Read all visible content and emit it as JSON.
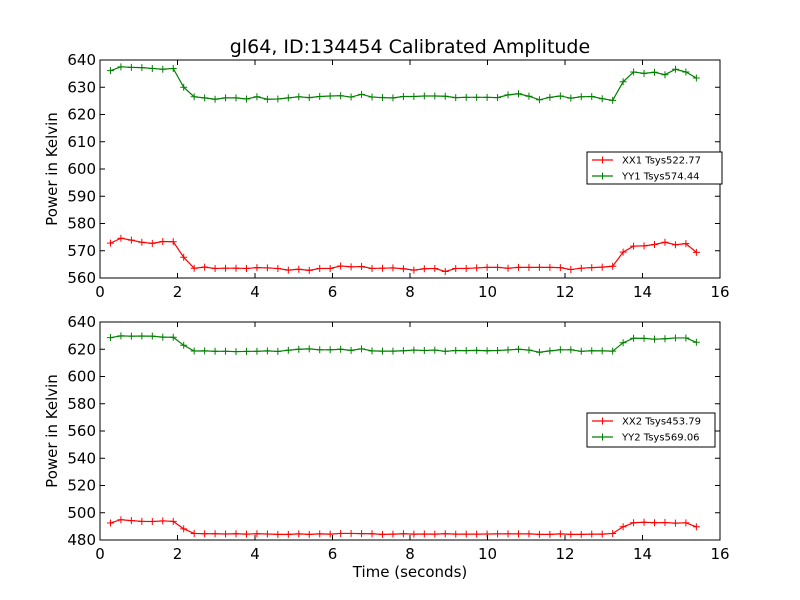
{
  "title": "gl64, ID:134454 Calibrated Amplitude",
  "chart_data": [
    {
      "type": "line",
      "title": "gl64, ID:134454 Calibrated Amplitude",
      "xlabel": "",
      "ylabel": "Power in Kelvin",
      "xlim": [
        0,
        16
      ],
      "ylim": [
        560,
        640
      ],
      "xticks": [
        0,
        2,
        4,
        6,
        8,
        10,
        12,
        14,
        16
      ],
      "yticks": [
        560,
        570,
        580,
        590,
        600,
        610,
        620,
        630,
        640
      ],
      "grid": false,
      "legend_position": "center-right",
      "x": [
        0.27,
        0.54,
        0.81,
        1.08,
        1.35,
        1.62,
        1.89,
        2.16,
        2.43,
        2.7,
        2.97,
        3.24,
        3.51,
        3.78,
        4.05,
        4.32,
        4.59,
        4.86,
        5.13,
        5.4,
        5.67,
        5.94,
        6.21,
        6.48,
        6.75,
        7.02,
        7.29,
        7.56,
        7.83,
        8.1,
        8.37,
        8.64,
        8.91,
        9.18,
        9.45,
        9.72,
        9.99,
        10.26,
        10.53,
        10.8,
        11.07,
        11.34,
        11.61,
        11.88,
        12.15,
        12.42,
        12.69,
        12.96,
        13.23,
        13.5,
        13.77,
        14.04,
        14.31,
        14.58,
        14.85,
        15.12,
        15.39
      ],
      "series": [
        {
          "name": "XX1 Tsys522.77",
          "color": "#ff0000",
          "values": [
            572.8,
            574.6,
            573.9,
            573.1,
            572.7,
            573.4,
            573.3,
            567.6,
            563.6,
            564.0,
            563.5,
            563.6,
            563.6,
            563.5,
            563.8,
            563.7,
            563.5,
            562.9,
            563.2,
            562.8,
            563.5,
            563.5,
            564.4,
            564.1,
            564.2,
            563.5,
            563.6,
            563.7,
            563.4,
            562.9,
            563.4,
            563.5,
            562.4,
            563.5,
            563.5,
            563.7,
            563.9,
            563.9,
            563.6,
            563.9,
            563.9,
            563.9,
            563.9,
            563.8,
            563.1,
            563.6,
            563.8,
            564.0,
            564.3,
            569.5,
            571.7,
            571.8,
            572.3,
            573.1,
            572.2,
            572.6,
            569.4
          ]
        },
        {
          "name": "YY1 Tsys574.44",
          "color": "#008000",
          "values": [
            636.1,
            637.5,
            637.3,
            637.2,
            636.9,
            636.6,
            636.9,
            630.0,
            626.5,
            626.1,
            625.6,
            626.1,
            626.1,
            625.7,
            626.5,
            625.6,
            625.7,
            626.1,
            626.5,
            626.2,
            626.6,
            626.8,
            626.9,
            626.4,
            627.4,
            626.4,
            626.2,
            626.1,
            626.6,
            626.6,
            626.8,
            626.8,
            626.7,
            626.2,
            626.3,
            626.3,
            626.3,
            626.2,
            627.2,
            627.6,
            626.7,
            625.4,
            626.3,
            626.8,
            626.0,
            626.5,
            626.6,
            625.8,
            625.2,
            632.0,
            635.6,
            635.1,
            635.5,
            634.6,
            636.6,
            635.6,
            633.4
          ]
        }
      ]
    },
    {
      "type": "line",
      "title": "",
      "xlabel": "Time (seconds)",
      "ylabel": "Power in Kelvin",
      "xlim": [
        0,
        16
      ],
      "ylim": [
        480,
        640
      ],
      "xticks": [
        0,
        2,
        4,
        6,
        8,
        10,
        12,
        14,
        16
      ],
      "yticks": [
        480,
        500,
        520,
        540,
        560,
        580,
        600,
        620,
        640
      ],
      "grid": false,
      "legend_position": "center-right",
      "x": [
        0.27,
        0.54,
        0.81,
        1.08,
        1.35,
        1.62,
        1.89,
        2.16,
        2.43,
        2.7,
        2.97,
        3.24,
        3.51,
        3.78,
        4.05,
        4.32,
        4.59,
        4.86,
        5.13,
        5.4,
        5.67,
        5.94,
        6.21,
        6.48,
        6.75,
        7.02,
        7.29,
        7.56,
        7.83,
        8.1,
        8.37,
        8.64,
        8.91,
        9.18,
        9.45,
        9.72,
        9.99,
        10.26,
        10.53,
        10.8,
        11.07,
        11.34,
        11.61,
        11.88,
        12.15,
        12.42,
        12.69,
        12.96,
        13.23,
        13.5,
        13.77,
        14.04,
        14.31,
        14.58,
        14.85,
        15.12,
        15.39
      ],
      "series": [
        {
          "name": "XX2 Tsys453.79",
          "color": "#ff0000",
          "values": [
            492.5,
            494.9,
            494.2,
            493.7,
            493.6,
            494.0,
            493.7,
            488.2,
            484.8,
            484.6,
            484.6,
            484.4,
            484.6,
            484.3,
            484.6,
            484.4,
            484.1,
            484.1,
            484.5,
            484.1,
            484.5,
            484.3,
            484.8,
            484.8,
            484.7,
            484.6,
            484.1,
            484.3,
            484.6,
            484.3,
            484.4,
            484.3,
            484.6,
            484.3,
            484.3,
            484.3,
            484.4,
            484.5,
            484.5,
            484.5,
            484.5,
            484.1,
            484.1,
            484.5,
            484.1,
            484.1,
            484.3,
            484.3,
            484.8,
            489.7,
            492.7,
            493.0,
            492.7,
            492.8,
            492.4,
            492.6,
            489.7
          ]
        },
        {
          "name": "YY2 Tsys569.06",
          "color": "#008000",
          "values": [
            628.5,
            629.8,
            629.6,
            629.7,
            629.6,
            628.9,
            628.8,
            622.9,
            618.7,
            618.8,
            618.5,
            618.5,
            618.3,
            618.4,
            618.5,
            618.8,
            618.4,
            619.3,
            620.0,
            620.3,
            619.6,
            619.6,
            620.0,
            619.2,
            620.3,
            618.8,
            618.6,
            618.6,
            618.9,
            619.4,
            619.1,
            619.4,
            618.5,
            619.1,
            619.0,
            619.2,
            618.9,
            619.1,
            619.5,
            620.0,
            619.4,
            617.8,
            618.8,
            619.6,
            619.6,
            618.5,
            618.9,
            618.8,
            618.6,
            624.8,
            628.1,
            628.0,
            627.4,
            627.7,
            628.3,
            628.3,
            625.1
          ]
        }
      ]
    }
  ]
}
